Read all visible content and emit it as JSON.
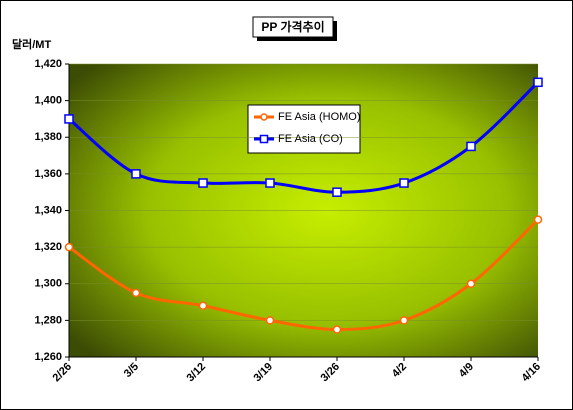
{
  "chart_data": {
    "type": "line",
    "title": "PP 가격추이",
    "y_label": "달러/MT",
    "categories": [
      "2/26",
      "3/5",
      "3/12",
      "3/19",
      "3/26",
      "4/2",
      "4/9",
      "4/16"
    ],
    "series": [
      {
        "name": "FE Asia (HOMO)",
        "color": "#ff6600",
        "values": [
          1320,
          1295,
          1288,
          1280,
          1275,
          1280,
          1300,
          1335
        ]
      },
      {
        "name": "FE Asia (CO)",
        "color": "#0000ff",
        "values": [
          1390,
          1360,
          1355,
          1355,
          1350,
          1355,
          1375,
          1410
        ]
      }
    ],
    "ylim": [
      1260,
      1420
    ],
    "yticks": [
      {
        "value": 1260,
        "label": "1,260"
      },
      {
        "value": 1280,
        "label": "1,280"
      },
      {
        "value": 1300,
        "label": "1,300"
      },
      {
        "value": 1320,
        "label": "1,320"
      },
      {
        "value": 1340,
        "label": "1,340"
      },
      {
        "value": 1360,
        "label": "1,360"
      },
      {
        "value": 1380,
        "label": "1,380"
      },
      {
        "value": 1400,
        "label": "1,400"
      },
      {
        "value": 1420,
        "label": "1,420"
      }
    ],
    "grid": true
  }
}
